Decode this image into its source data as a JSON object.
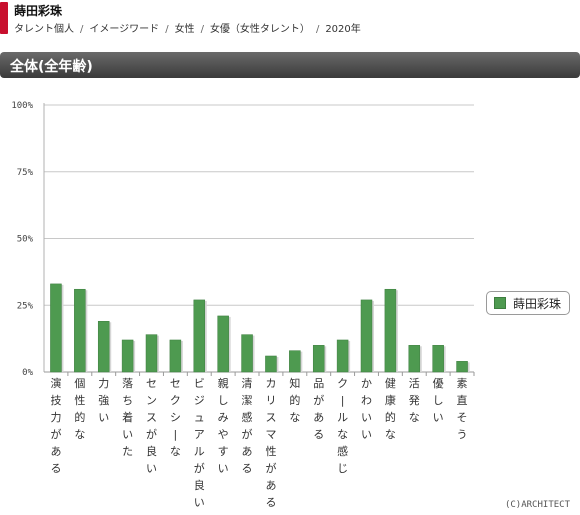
{
  "header": {
    "title": "蒔田彩珠",
    "breadcrumbs": [
      "タレント個人",
      "イメージワード",
      "女性",
      "女優（女性タレント）",
      "2020年"
    ],
    "separator": "/"
  },
  "section": {
    "title": "全体(全年齢)"
  },
  "colors": {
    "bar": "#4e9a50",
    "bar_stroke": "#3d7d3f",
    "grid": "#c8c8c8",
    "accent": "#c8102e"
  },
  "chart_data": {
    "type": "bar",
    "categories": [
      "演技力がある",
      "個性的な",
      "力強い",
      "落ち着いた",
      "センスが良い",
      "セクシーな",
      "ビジュアルが良い",
      "親しみやすい",
      "清潔感がある",
      "カリスマ性がある",
      "知的な",
      "品がある",
      "クールな感じ",
      "かわいい",
      "健康的な",
      "活発な",
      "優しい",
      "素直そう"
    ],
    "series": [
      {
        "name": "蒔田彩珠",
        "values": [
          33,
          31,
          19,
          12,
          14,
          12,
          27,
          21,
          14,
          6,
          8,
          10,
          12,
          27,
          31,
          10,
          10,
          4
        ]
      }
    ],
    "ylim": [
      0,
      100
    ],
    "yticks": [
      "0%",
      "25%",
      "50%",
      "75%",
      "100%"
    ],
    "grid": true,
    "legend_position": "right"
  },
  "legend": {
    "label": "蒔田彩珠"
  },
  "footer": {
    "credit": "(C)ARCHITECT"
  }
}
